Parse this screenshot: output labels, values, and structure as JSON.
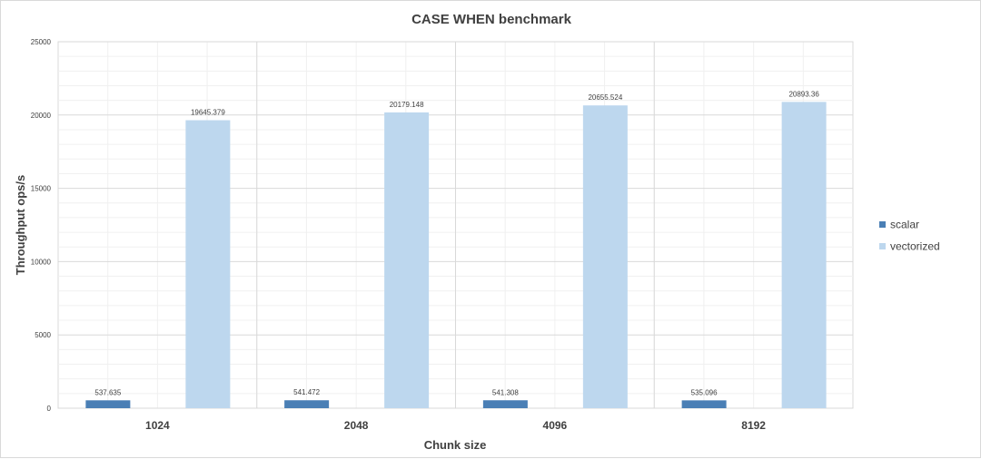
{
  "chart_data": {
    "type": "bar",
    "title": "CASE WHEN benchmark",
    "xlabel": "Chunk size",
    "ylabel": "Throughput ops/s",
    "categories": [
      "1024",
      "2048",
      "4096",
      "8192"
    ],
    "series": [
      {
        "name": "scalar",
        "values": [
          537.635,
          541.472,
          541.308,
          535.096
        ],
        "labels": [
          "537.635",
          "541.472",
          "541.308",
          "535.096"
        ],
        "color": "#4a7fb5"
      },
      {
        "name": "vectorized",
        "values": [
          19645.379,
          20179.148,
          20655.524,
          20893.36
        ],
        "labels": [
          "19645.379",
          "20179.148",
          "20655.524",
          "20893.36"
        ],
        "color": "#bdd7ee"
      }
    ],
    "ylim": [
      0,
      25000
    ],
    "yticks": [
      0,
      5000,
      10000,
      15000,
      20000,
      25000
    ],
    "ytick_labels": [
      "0",
      "5000",
      "10000",
      "15000",
      "20000",
      "25000"
    ],
    "grid": true,
    "legend_position": "right"
  }
}
